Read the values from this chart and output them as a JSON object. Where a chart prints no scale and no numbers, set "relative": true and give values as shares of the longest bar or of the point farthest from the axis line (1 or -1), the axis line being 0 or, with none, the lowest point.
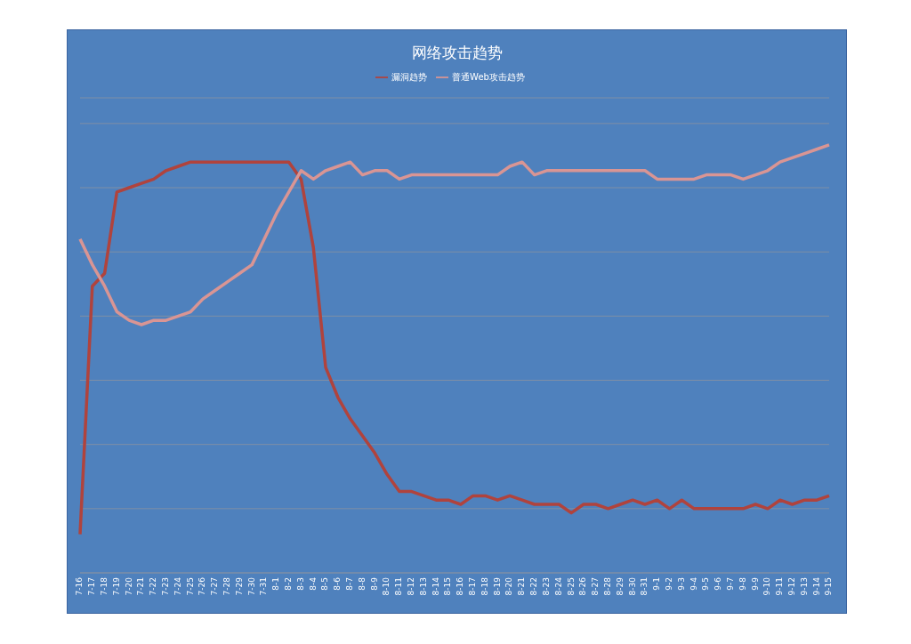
{
  "chart_data": {
    "type": "line",
    "title": "网络攻击趋势",
    "relative": true,
    "grid": "y",
    "legend": "top",
    "marker": "none",
    "line_style": "solid",
    "categories": [
      "7-16",
      "7-17",
      "7-18",
      "7-19",
      "7-20",
      "7-21",
      "7-22",
      "7-23",
      "7-24",
      "7-25",
      "7-26",
      "7-27",
      "7-28",
      "7-29",
      "7-30",
      "7-31",
      "8-1",
      "8-2",
      "8-3",
      "8-4",
      "8-5",
      "8-6",
      "8-7",
      "8-8",
      "8-9",
      "8-10",
      "8-11",
      "8-12",
      "8-13",
      "8-14",
      "8-15",
      "8-16",
      "8-17",
      "8-18",
      "8-19",
      "8-20",
      "8-21",
      "8-22",
      "8-23",
      "8-24",
      "8-25",
      "8-26",
      "8-27",
      "8-28",
      "8-29",
      "8-30",
      "8-31",
      "9-1",
      "9-2",
      "9-3",
      "9-4",
      "9-5",
      "9-6",
      "9-7",
      "9-8",
      "9-9",
      "9-10",
      "9-11",
      "9-12",
      "9-13",
      "9-14",
      "9-15"
    ],
    "series": [
      {
        "name": "漏洞趋势",
        "color": "#b0433d",
        "values": [
          0.09,
          0.67,
          0.7,
          0.89,
          0.9,
          0.91,
          0.92,
          0.94,
          0.95,
          0.96,
          0.96,
          0.96,
          0.96,
          0.96,
          0.96,
          0.96,
          0.96,
          0.96,
          0.92,
          0.76,
          0.48,
          0.41,
          0.36,
          0.32,
          0.28,
          0.23,
          0.19,
          0.19,
          0.18,
          0.17,
          0.17,
          0.16,
          0.18,
          0.18,
          0.17,
          0.18,
          0.17,
          0.16,
          0.16,
          0.16,
          0.14,
          0.16,
          0.16,
          0.15,
          0.16,
          0.17,
          0.16,
          0.17,
          0.15,
          0.17,
          0.15,
          0.15,
          0.15,
          0.15,
          0.15,
          0.16,
          0.15,
          0.17,
          0.16,
          0.17,
          0.17,
          0.18
        ]
      },
      {
        "name": "普通Web攻击趋势",
        "color": "#d99594",
        "values": [
          0.78,
          0.72,
          0.67,
          0.61,
          0.59,
          0.58,
          0.59,
          0.59,
          0.6,
          0.61,
          0.64,
          0.66,
          0.68,
          0.7,
          0.72,
          0.78,
          0.84,
          0.89,
          0.94,
          0.92,
          0.94,
          0.95,
          0.96,
          0.93,
          0.94,
          0.94,
          0.92,
          0.93,
          0.93,
          0.93,
          0.93,
          0.93,
          0.93,
          0.93,
          0.93,
          0.95,
          0.96,
          0.93,
          0.94,
          0.94,
          0.94,
          0.94,
          0.94,
          0.94,
          0.94,
          0.94,
          0.94,
          0.92,
          0.92,
          0.92,
          0.92,
          0.93,
          0.93,
          0.93,
          0.92,
          0.93,
          0.94,
          0.96,
          0.97,
          0.98,
          0.99,
          1
        ]
      }
    ]
  }
}
